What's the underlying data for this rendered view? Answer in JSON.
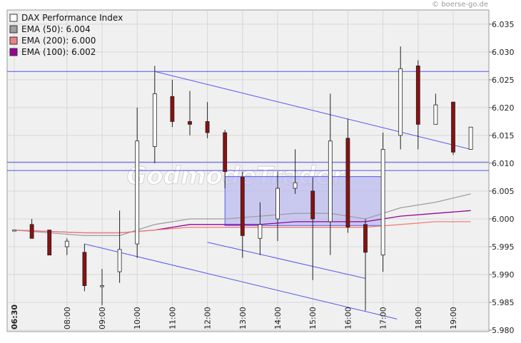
{
  "credit": "© boerse-go.de",
  "watermark": "GodmodeTrader",
  "legend": [
    {
      "label": "DAX Performance Index",
      "color": "#ffffff"
    },
    {
      "label": "EMA (50): 6.004",
      "color": "#9e9e9e"
    },
    {
      "label": "EMA (200): 6.000",
      "color": "#f08080"
    },
    {
      "label": "EMA (100): 6.002",
      "color": "#990099"
    }
  ],
  "colors": {
    "plot_bg": "#f0f0f0",
    "grid": "#d7d7d7",
    "up_candle": "#ffffff",
    "down_candle": "#8b1010",
    "trend_line": "#5555ee",
    "box_fill": "#b8b8f0"
  },
  "chart_data": {
    "type": "candlestick",
    "title": "",
    "xlabel": "",
    "ylabel": "",
    "ylim": [
      5.98,
      6.036
    ],
    "y_ticks": [
      "6.035",
      "6.030",
      "6.025",
      "6.020",
      "6.015",
      "6.010",
      "6.005",
      "6.000",
      "5.995",
      "5.990",
      "5.985",
      "5.980"
    ],
    "x_ticks": [
      {
        "t": 0,
        "label": "06:30"
      },
      {
        "t": 1.5,
        "label": "08:00"
      },
      {
        "t": 2.5,
        "label": "09:00"
      },
      {
        "t": 3.5,
        "label": "10:00"
      },
      {
        "t": 4.5,
        "label": "11:00"
      },
      {
        "t": 5.5,
        "label": "12:00"
      },
      {
        "t": 6.5,
        "label": "13:00"
      },
      {
        "t": 7.5,
        "label": "14:00"
      },
      {
        "t": 8.5,
        "label": "15:00"
      },
      {
        "t": 9.5,
        "label": "16:00"
      },
      {
        "t": 10.5,
        "label": "17:00"
      },
      {
        "t": 11.5,
        "label": "18:00"
      },
      {
        "t": 12.5,
        "label": "19:00"
      }
    ],
    "grid": true,
    "legend_position": "top-left",
    "candles": [
      {
        "t": 0,
        "open": 5.998,
        "high": 5.998,
        "low": 5.998,
        "close": 5.998
      },
      {
        "t": 0.5,
        "open": 5.999,
        "high": 6.0,
        "low": 5.9965,
        "close": 5.9965
      },
      {
        "t": 1.0,
        "open": 5.998,
        "high": 5.998,
        "low": 5.9935,
        "close": 5.9935
      },
      {
        "t": 1.5,
        "open": 5.995,
        "high": 5.9965,
        "low": 5.9935,
        "close": 5.996
      },
      {
        "t": 2.0,
        "open": 5.994,
        "high": 5.9955,
        "low": 5.987,
        "close": 5.988
      },
      {
        "t": 2.5,
        "open": 5.988,
        "high": 5.991,
        "low": 5.9845,
        "close": 5.988
      },
      {
        "t": 3.0,
        "open": 5.9905,
        "high": 6.0015,
        "low": 5.9885,
        "close": 5.9945
      },
      {
        "t": 3.5,
        "open": 5.9955,
        "high": 6.02,
        "low": 5.993,
        "close": 6.014
      },
      {
        "t": 4.0,
        "open": 6.013,
        "high": 6.0275,
        "low": 6.01,
        "close": 6.0225
      },
      {
        "t": 4.5,
        "open": 6.022,
        "high": 6.025,
        "low": 6.0165,
        "close": 6.0175
      },
      {
        "t": 5.0,
        "open": 6.0175,
        "high": 6.023,
        "low": 6.015,
        "close": 6.017
      },
      {
        "t": 5.5,
        "open": 6.0175,
        "high": 6.021,
        "low": 6.0145,
        "close": 6.0155
      },
      {
        "t": 6.0,
        "open": 6.0155,
        "high": 6.016,
        "low": 6.0055,
        "close": 6.0085
      },
      {
        "t": 6.5,
        "open": 6.0075,
        "high": 6.0085,
        "low": 5.993,
        "close": 5.997
      },
      {
        "t": 7.0,
        "open": 5.9965,
        "high": 6.003,
        "low": 5.9935,
        "close": 5.999
      },
      {
        "t": 7.5,
        "open": 6.0,
        "high": 6.0085,
        "low": 5.996,
        "close": 6.0055
      },
      {
        "t": 8.0,
        "open": 6.0055,
        "high": 6.0125,
        "low": 6.0045,
        "close": 6.0065
      },
      {
        "t": 8.5,
        "open": 6.005,
        "high": 6.0075,
        "low": 5.989,
        "close": 6.0
      },
      {
        "t": 9.0,
        "open": 5.9995,
        "high": 6.0225,
        "low": 5.9935,
        "close": 6.014
      },
      {
        "t": 9.5,
        "open": 6.0145,
        "high": 6.018,
        "low": 5.9975,
        "close": 5.9985
      },
      {
        "t": 10.0,
        "open": 5.999,
        "high": 6.0,
        "low": 5.9835,
        "close": 5.994
      },
      {
        "t": 10.5,
        "open": 5.9935,
        "high": 6.0155,
        "low": 5.9905,
        "close": 6.0125
      },
      {
        "t": 11.0,
        "open": 6.015,
        "high": 6.031,
        "low": 6.0125,
        "close": 6.027
      },
      {
        "t": 11.5,
        "open": 6.0275,
        "high": 6.0285,
        "low": 6.0125,
        "close": 6.017
      },
      {
        "t": 12.0,
        "open": 6.017,
        "high": 6.0225,
        "low": 6.017,
        "close": 6.0205
      },
      {
        "t": 12.5,
        "open": 6.021,
        "high": 6.021,
        "low": 6.0115,
        "close": 6.012
      },
      {
        "t": 13.0,
        "open": 6.0125,
        "high": 6.0165,
        "low": 6.0125,
        "close": 6.0165
      }
    ],
    "ema_series": [
      {
        "color": "#9e9e9e",
        "points": [
          [
            0,
            5.998
          ],
          [
            2.0,
            5.997
          ],
          [
            3.0,
            5.997
          ],
          [
            4.0,
            5.999
          ],
          [
            5.0,
            6.0
          ],
          [
            6.0,
            6.0
          ],
          [
            7.0,
            6.0005
          ],
          [
            8.0,
            6.001
          ],
          [
            9.0,
            6.001
          ],
          [
            10.0,
            6.0
          ],
          [
            11.0,
            6.002
          ],
          [
            12.0,
            6.003
          ],
          [
            13.0,
            6.0045
          ]
        ]
      },
      {
        "color": "#990099",
        "points": [
          [
            0,
            5.998
          ],
          [
            2.0,
            5.9975
          ],
          [
            3.0,
            5.9975
          ],
          [
            4.0,
            5.998
          ],
          [
            5.0,
            5.999
          ],
          [
            6.0,
            5.999
          ],
          [
            7.0,
            5.999
          ],
          [
            8.0,
            5.9995
          ],
          [
            9.0,
            5.9995
          ],
          [
            10.0,
            5.9995
          ],
          [
            11.0,
            6.0005
          ],
          [
            12.0,
            6.001
          ],
          [
            13.0,
            6.0015
          ]
        ]
      },
      {
        "color": "#f08080",
        "points": [
          [
            0,
            5.998
          ],
          [
            2.0,
            5.9975
          ],
          [
            3.0,
            5.9975
          ],
          [
            4.0,
            5.998
          ],
          [
            5.0,
            5.9985
          ],
          [
            6.0,
            5.9985
          ],
          [
            7.0,
            5.9985
          ],
          [
            8.0,
            5.9985
          ],
          [
            9.0,
            5.9985
          ],
          [
            10.0,
            5.9985
          ],
          [
            11.0,
            5.999
          ],
          [
            12.0,
            5.9995
          ],
          [
            13.0,
            5.9995
          ]
        ]
      }
    ],
    "horizontal_lines": [
      6.0265,
      6.0102,
      6.0087
    ],
    "trend_lines": [
      {
        "t1": 4.0,
        "v1": 6.0265,
        "t2": 13.0,
        "v2": 6.0125
      },
      {
        "t1": 2.0,
        "v1": 5.9955,
        "t2": 10.9,
        "v2": 5.982
      },
      {
        "t1": 5.5,
        "v1": 5.9958,
        "t2": 10.0,
        "v2": 5.9893
      }
    ],
    "box": {
      "t1": 6.0,
      "t2": 10.5,
      "v1": 5.9988,
      "v2": 6.0076
    }
  }
}
